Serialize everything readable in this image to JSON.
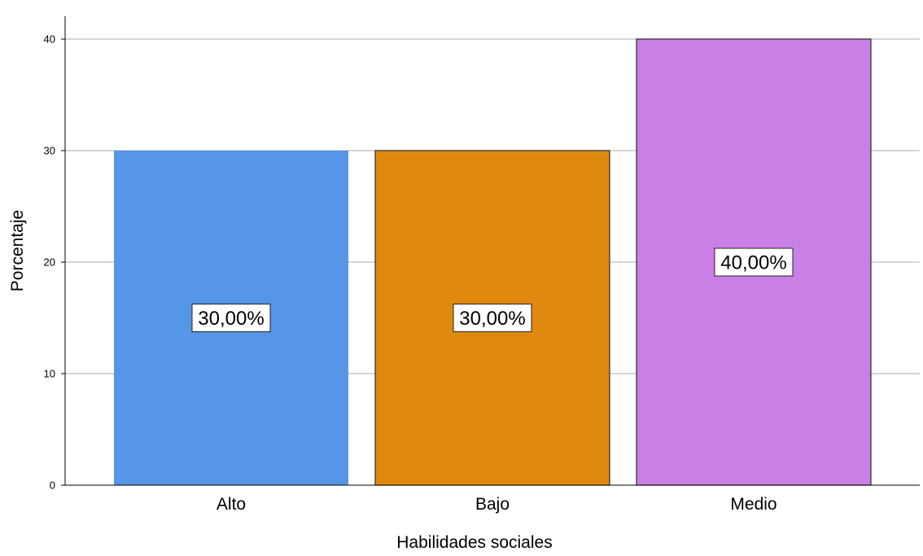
{
  "chart_data": {
    "type": "bar",
    "categories": [
      "Alto",
      "Bajo",
      "Medio"
    ],
    "values": [
      30,
      30,
      40
    ],
    "data_labels": [
      "30,00%",
      "30,00%",
      "40,00%"
    ],
    "colors": [
      "#5596e6",
      "#e0890f",
      "#c97fe6"
    ],
    "xlabel": "Habilidades sociales",
    "ylabel": "Porcentaje",
    "ylim": [
      0,
      40
    ],
    "yticks": [
      0,
      10,
      20,
      30,
      40
    ],
    "grid": true,
    "legend": "none"
  }
}
